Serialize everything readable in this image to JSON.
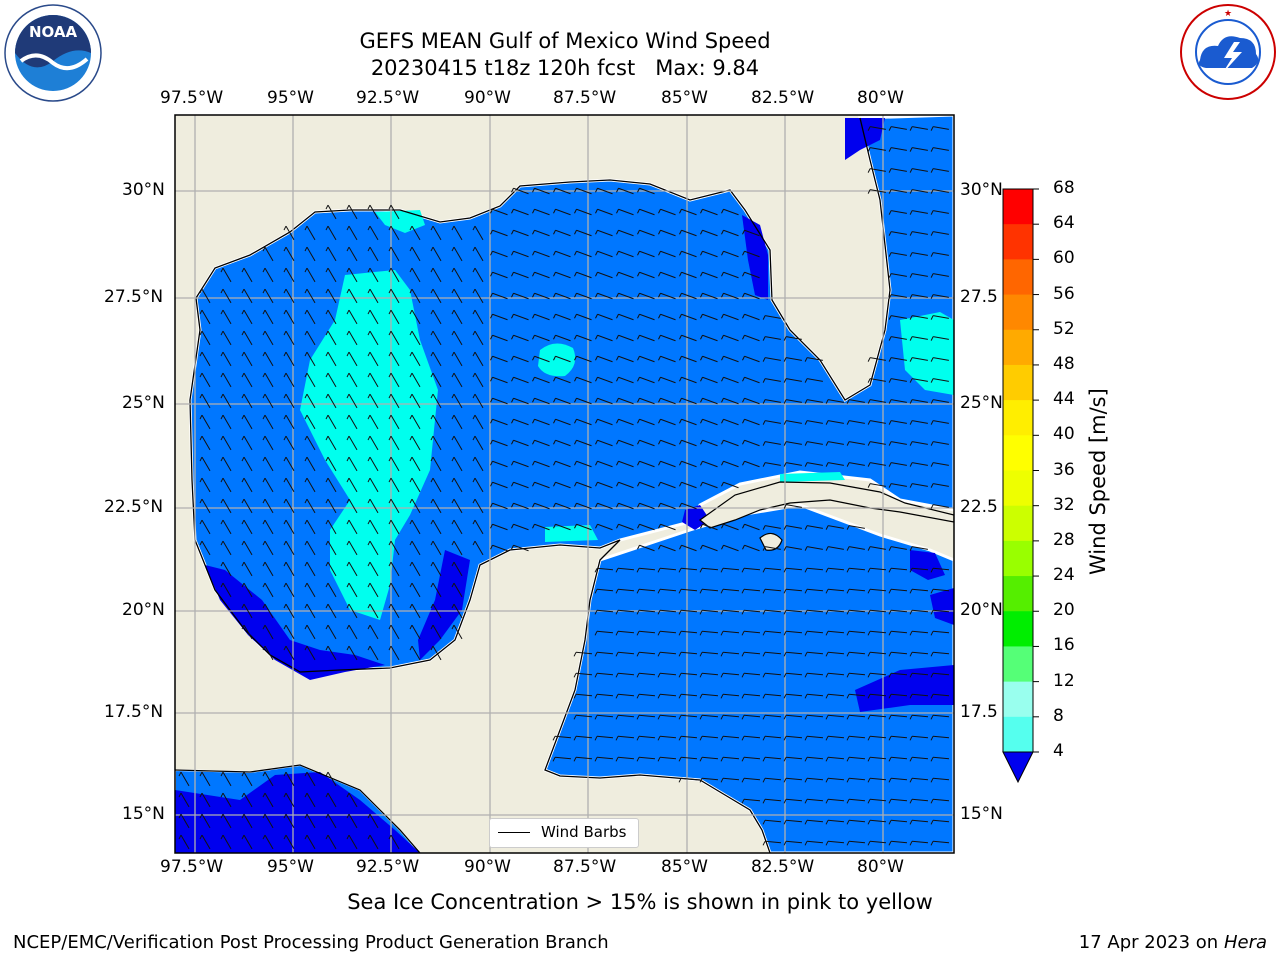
{
  "header": {
    "title_line1": "GEFS MEAN Gulf of Mexico Wind Speed",
    "title_line2": "20230415 t18z 120h fcst   Max: 9.84"
  },
  "logos": {
    "noaa": {
      "text": "NOAA",
      "ring_text": "NATIONAL OCEANIC AND ATMOSPHERIC ADMINISTRATION · U.S. DEPARTMENT OF COMMERCE"
    },
    "nws": {
      "ring_text": "NATIONAL WEATHER SERVICE"
    }
  },
  "map": {
    "lon_labels": [
      "97.5°W",
      "95°W",
      "92.5°W",
      "90°W",
      "87.5°W",
      "85°W",
      "82.5°W",
      "80°W"
    ],
    "lat_labels_left": [
      "30°N",
      "27.5°N",
      "25°N",
      "22.5°N",
      "20°N",
      "17.5°N",
      "15°N"
    ],
    "lat_labels_right": [
      "30°N",
      "27.5",
      "25°N",
      "22.5",
      "20°N",
      "17.5",
      "15°N"
    ],
    "legend_label": "Wind Barbs",
    "colors": {
      "land": "#efedde",
      "ocean_low": "#0077ff",
      "ocean_min": "#0000ee",
      "ocean_mid": "#00ffee",
      "grid": "#b0b0b0"
    }
  },
  "colorbar": {
    "label": "Wind Speed [m/s]",
    "ticks": [
      "68",
      "64",
      "60",
      "56",
      "52",
      "48",
      "44",
      "40",
      "36",
      "32",
      "28",
      "24",
      "20",
      "16",
      "12",
      "8",
      "4"
    ],
    "colors": [
      "#ff0000",
      "#ff3300",
      "#ff6600",
      "#ff8800",
      "#ffaa00",
      "#ffcc00",
      "#ffee00",
      "#ffff00",
      "#eeff00",
      "#ccff00",
      "#99ff00",
      "#55ee00",
      "#00ee00",
      "#55ff77",
      "#99ffee",
      "#55ffee",
      "#00ffee",
      "#0077ff",
      "#0000ee"
    ]
  },
  "footer": {
    "note": "Sea Ice Concentration > 15% is shown in pink to yellow",
    "left": "NCEP/EMC/Verification Post Processing Product Generation Branch",
    "right_date": "17 Apr 2023 on ",
    "right_host": "Hera"
  }
}
